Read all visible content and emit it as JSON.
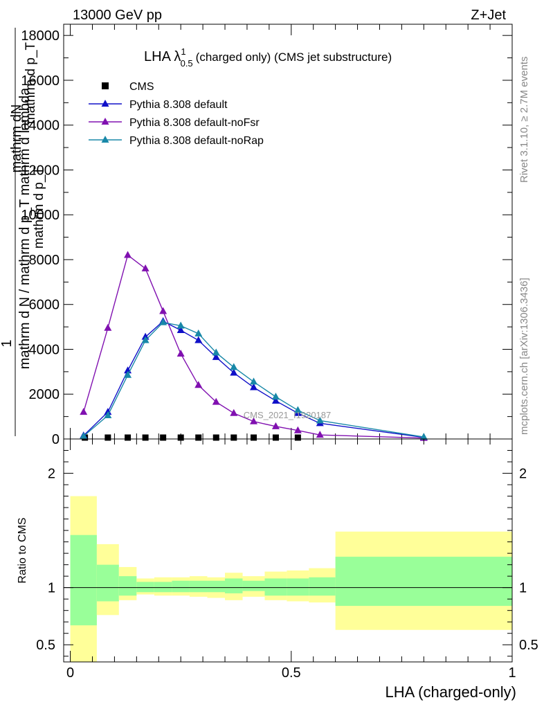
{
  "header": {
    "left": "13000 GeV pp",
    "right": "Z+Jet"
  },
  "side": {
    "rivet": "Rivet 3.1.10, ≥ 2.7M events",
    "mcplots": "mcplots.cern.ch [arXiv:1306.3436]"
  },
  "watermark": "CMS_2021_I1920187",
  "main_plot": {
    "title_main": "LHA λ",
    "title_sup": "1",
    "title_sub": "0.5",
    "title_rest": "(charged only) (CMS jet substructure)",
    "ylabel_one": "1",
    "ylabel_numer": "mathrm dN",
    "ylabel_numer2": "mathrm d p_T",
    "ylabel_denom": "mathrm d N / mathrm d p_T  mathrm d lambda",
    "ylabel_denom2": "mathrm d p_T"
  },
  "ratio_plot": {
    "ylabel": "Ratio to CMS",
    "xlabel": "LHA (charged-only)"
  },
  "colors": {
    "default": "#1010c8",
    "noFsr": "#8010b0",
    "noRap": "#1888a8",
    "band_inner": "#99ff99",
    "band_outer": "#ffff99"
  },
  "chart_data": [
    {
      "type": "line",
      "xlim": [
        -0.015,
        1.0
      ],
      "ylim": [
        0,
        18500
      ],
      "yticks": [
        0,
        2000,
        4000,
        6000,
        8000,
        10000,
        12000,
        14000,
        16000,
        18000
      ],
      "ytick_labels": [
        "0",
        "2000",
        "4000",
        "6000",
        "8000",
        "10000",
        "12000",
        "14000",
        "16000",
        "18000"
      ],
      "xticks": [
        0,
        0.5,
        1
      ],
      "legend_position": "top-left",
      "series": [
        {
          "name": "CMS",
          "marker": "square",
          "x": [
            0.033,
            0.085,
            0.13,
            0.17,
            0.21,
            0.25,
            0.29,
            0.33,
            0.37,
            0.415,
            0.465,
            0.515
          ],
          "y": [
            0,
            0,
            0,
            0,
            0,
            0,
            0,
            0,
            0,
            0,
            0,
            0
          ]
        },
        {
          "name": "Pythia 8.308 default",
          "marker": "triangle",
          "x": [
            0.03,
            0.085,
            0.13,
            0.17,
            0.21,
            0.25,
            0.29,
            0.33,
            0.37,
            0.415,
            0.465,
            0.515,
            0.565,
            0.8
          ],
          "y": [
            150,
            1200,
            3050,
            4550,
            5250,
            4850,
            4400,
            3650,
            2950,
            2300,
            1700,
            1150,
            700,
            70
          ]
        },
        {
          "name": "Pythia 8.308 default-noFsr",
          "marker": "triangle",
          "x": [
            0.03,
            0.085,
            0.13,
            0.17,
            0.21,
            0.25,
            0.29,
            0.33,
            0.37,
            0.415,
            0.465,
            0.515,
            0.565,
            0.8
          ],
          "y": [
            1200,
            4950,
            8200,
            7600,
            5700,
            3800,
            2400,
            1650,
            1150,
            780,
            560,
            380,
            180,
            40
          ]
        },
        {
          "name": "Pythia 8.308 default-noRap",
          "marker": "triangle",
          "x": [
            0.03,
            0.085,
            0.13,
            0.17,
            0.21,
            0.25,
            0.29,
            0.33,
            0.37,
            0.415,
            0.465,
            0.515,
            0.565,
            0.8
          ],
          "y": [
            120,
            1050,
            2850,
            4400,
            5200,
            5050,
            4700,
            3850,
            3200,
            2550,
            1880,
            1280,
            820,
            90
          ]
        }
      ]
    },
    {
      "type": "area",
      "title": "Ratio to CMS",
      "xlim": [
        -0.015,
        1.0
      ],
      "ylim": [
        0.35,
        2.3
      ],
      "yticks": [
        0.5,
        1,
        2
      ],
      "ytick_labels": [
        "0.5",
        "1",
        "2"
      ],
      "xtick_labels": [
        "0",
        "0.5",
        "1"
      ],
      "reference_line": 1.0,
      "bins": [
        {
          "x0": 0.0,
          "x1": 0.06,
          "inner": [
            0.67,
            1.46
          ],
          "outer": [
            0.35,
            1.8
          ]
        },
        {
          "x0": 0.06,
          "x1": 0.11,
          "inner": [
            0.88,
            1.2
          ],
          "outer": [
            0.76,
            1.38
          ]
        },
        {
          "x0": 0.11,
          "x1": 0.15,
          "inner": [
            0.93,
            1.1
          ],
          "outer": [
            0.89,
            1.18
          ]
        },
        {
          "x0": 0.15,
          "x1": 0.19,
          "inner": [
            0.96,
            1.05
          ],
          "outer": [
            0.94,
            1.08
          ]
        },
        {
          "x0": 0.19,
          "x1": 0.23,
          "inner": [
            0.96,
            1.05
          ],
          "outer": [
            0.93,
            1.09
          ]
        },
        {
          "x0": 0.23,
          "x1": 0.27,
          "inner": [
            0.96,
            1.06
          ],
          "outer": [
            0.93,
            1.09
          ]
        },
        {
          "x0": 0.27,
          "x1": 0.31,
          "inner": [
            0.96,
            1.06
          ],
          "outer": [
            0.92,
            1.1
          ]
        },
        {
          "x0": 0.31,
          "x1": 0.35,
          "inner": [
            0.96,
            1.06
          ],
          "outer": [
            0.91,
            1.09
          ]
        },
        {
          "x0": 0.35,
          "x1": 0.39,
          "inner": [
            0.95,
            1.08
          ],
          "outer": [
            0.89,
            1.13
          ]
        },
        {
          "x0": 0.39,
          "x1": 0.44,
          "inner": [
            0.97,
            1.06
          ],
          "outer": [
            0.92,
            1.1
          ]
        },
        {
          "x0": 0.44,
          "x1": 0.49,
          "inner": [
            0.93,
            1.08
          ],
          "outer": [
            0.89,
            1.14
          ]
        },
        {
          "x0": 0.49,
          "x1": 0.54,
          "inner": [
            0.93,
            1.08
          ],
          "outer": [
            0.88,
            1.15
          ]
        },
        {
          "x0": 0.54,
          "x1": 0.6,
          "inner": [
            0.93,
            1.09
          ],
          "outer": [
            0.87,
            1.17
          ]
        },
        {
          "x0": 0.6,
          "x1": 1.0,
          "inner": [
            0.84,
            1.27
          ],
          "outer": [
            0.63,
            1.49
          ]
        }
      ]
    }
  ]
}
